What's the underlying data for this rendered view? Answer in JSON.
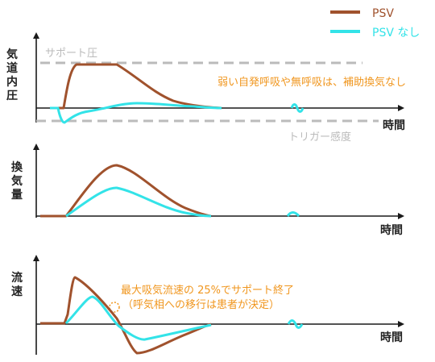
{
  "legend": {
    "psv_label": "PSV",
    "no_psv_label": "PSV なし"
  },
  "panels": {
    "pressure": {
      "ylabel": [
        "気",
        "道",
        "内",
        "圧"
      ],
      "xlabel": "時間",
      "support_label": "サポート圧",
      "trigger_label": "トリガー感度",
      "note": "弱い自発呼吸や無呼吸は、補助換気なし"
    },
    "volume": {
      "ylabel": [
        "換",
        "気",
        "量"
      ],
      "xlabel": "時間"
    },
    "flow": {
      "ylabel": [
        "流",
        "速"
      ],
      "xlabel": "時間",
      "note_line1": "最大吸気流速の 25%でサポート終了",
      "note_line2": "（呼気相への移行は患者が決定）"
    }
  },
  "colors": {
    "psv": "#A0522D",
    "no_psv": "#33E3E8",
    "dashed": "#BBBBBB",
    "note": "#F0961E",
    "axis": "#1a1a1a"
  }
}
